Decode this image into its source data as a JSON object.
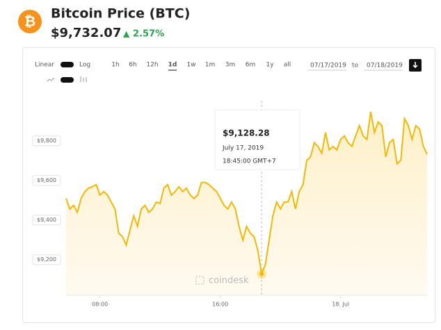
{
  "header": {
    "title": "Bitcoin Price (BTC)",
    "price": "$9,732.07",
    "change": "2.57%"
  },
  "controls": {
    "scale": [
      "Linear",
      "Log"
    ],
    "ranges": [
      "1h",
      "6h",
      "12h",
      "1d",
      "1w",
      "1m",
      "3m",
      "6m",
      "1y",
      "all"
    ],
    "active_range": "1d",
    "from": "07/17/2019",
    "to_label": "to",
    "to": "07/18/2019"
  },
  "tooltip": {
    "price": "$9,128.28",
    "date": "July 17, 2019",
    "time": "18:45:00 GMT+7"
  },
  "watermark": "coindesk",
  "chart_data": {
    "type": "area",
    "color": "#f5b800",
    "grid": false,
    "x": [
      5.75,
      6,
      6.25,
      6.5,
      6.75,
      7,
      7.25,
      7.5,
      7.75,
      8,
      8.25,
      8.5,
      8.75,
      9,
      9.25,
      9.5,
      9.75,
      10,
      10.25,
      10.5,
      10.75,
      11,
      11.25,
      11.5,
      11.75,
      12,
      12.25,
      12.5,
      12.75,
      13,
      13.25,
      13.5,
      13.75,
      14,
      14.25,
      14.5,
      14.75,
      15,
      15.25,
      15.5,
      15.75,
      16,
      16.25,
      16.5,
      16.75,
      17,
      17.25,
      17.5,
      17.75,
      18,
      18.25,
      18.5,
      18.75,
      19,
      19.25,
      19.5,
      19.75,
      20,
      20.25,
      20.5,
      20.75,
      21,
      21.25,
      21.5,
      21.75,
      22,
      22.25,
      22.5,
      22.75,
      23,
      23.25,
      23.5,
      23.75,
      24,
      24.25,
      24.5,
      24.75,
      25,
      25.25,
      25.5,
      25.75,
      26,
      26.25,
      26.5,
      26.75,
      27,
      27.25,
      27.5,
      27.75,
      28,
      28.25,
      28.5,
      28.75,
      29,
      29.25,
      29.5,
      29.75
    ],
    "values": [
      9509,
      9456,
      9474,
      9439,
      9509,
      9544,
      9561,
      9568,
      9579,
      9526,
      9544,
      9526,
      9491,
      9456,
      9333,
      9316,
      9274,
      9351,
      9421,
      9368,
      9456,
      9474,
      9439,
      9456,
      9491,
      9484,
      9561,
      9579,
      9526,
      9544,
      9568,
      9544,
      9561,
      9526,
      9509,
      9526,
      9590,
      9590,
      9579,
      9561,
      9544,
      9509,
      9474,
      9456,
      9491,
      9456,
      9368,
      9298,
      9368,
      9333,
      9316,
      9246,
      9128.28,
      9175,
      9298,
      9421,
      9491,
      9456,
      9491,
      9491,
      9544,
      9456,
      9544,
      9579,
      9702,
      9719,
      9790,
      9772,
      9737,
      9842,
      9754,
      9772,
      9754,
      9807,
      9825,
      9790,
      9772,
      9825,
      9877,
      9825,
      9807,
      9947,
      9842,
      9895,
      9877,
      9719,
      9790,
      9807,
      9684,
      9702,
      9912,
      9877,
      9807,
      9877,
      9860,
      9772,
      9732
    ],
    "xlim": [
      5.75,
      29.75
    ],
    "ylim": [
      9020,
      10020
    ],
    "xticks": [
      {
        "value": 8,
        "label": "08:00"
      },
      {
        "value": 16,
        "label": "16:00"
      },
      {
        "value": 24,
        "label": "18. Jul"
      }
    ],
    "yticks": [
      {
        "value": 9200,
        "label": "$9,200"
      },
      {
        "value": 9400,
        "label": "$9,400"
      },
      {
        "value": 9600,
        "label": "$9,600"
      },
      {
        "value": 9800,
        "label": "$9,800"
      }
    ],
    "highlight_index": 52
  }
}
